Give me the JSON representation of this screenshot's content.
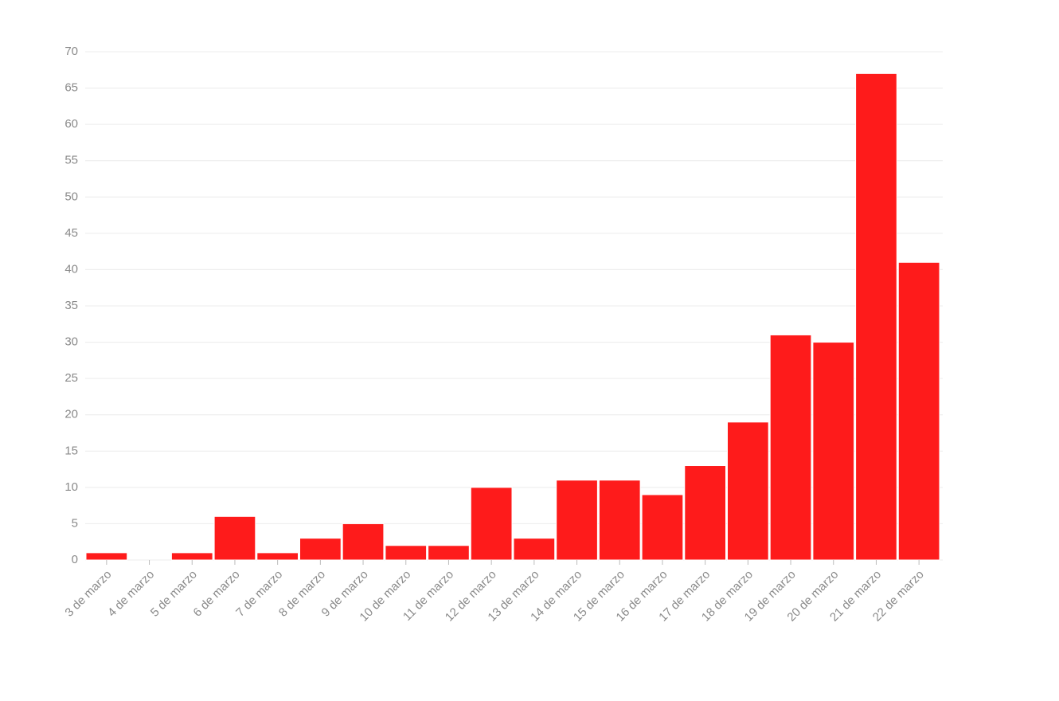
{
  "chart_data": {
    "type": "bar",
    "categories": [
      "3 de marzo",
      "4 de marzo",
      "5 de marzo",
      "6 de marzo",
      "7 de marzo",
      "8 de marzo",
      "9 de marzo",
      "10 de marzo",
      "11 de marzo",
      "12 de marzo",
      "13 de marzo",
      "14 de marzo",
      "15 de marzo",
      "16 de marzo",
      "17 de marzo",
      "18 de marzo",
      "19 de marzo",
      "20 de marzo",
      "21 de marzo",
      "22 de marzo"
    ],
    "values": [
      1,
      0,
      1,
      6,
      1,
      3,
      5,
      2,
      2,
      10,
      3,
      11,
      11,
      9,
      13,
      19,
      31,
      30,
      67,
      41
    ],
    "color": "#fe1b1b",
    "ylim": [
      0,
      70
    ],
    "yticks": [
      0,
      5,
      10,
      15,
      20,
      25,
      30,
      35,
      40,
      45,
      50,
      55,
      60,
      65,
      70
    ],
    "grid": true
  }
}
